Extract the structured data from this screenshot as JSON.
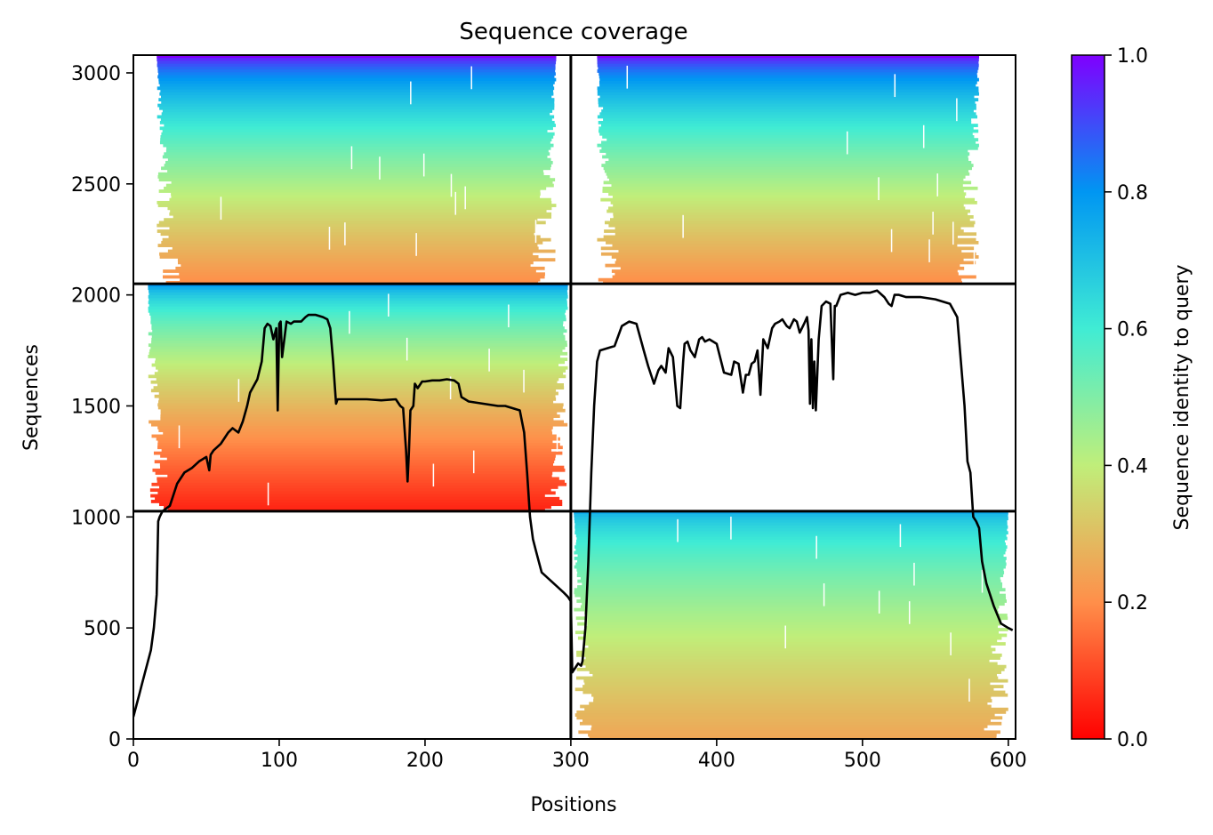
{
  "chart_data": {
    "type": "heatmap",
    "title": "Sequence coverage",
    "xlabel": "Positions",
    "ylabel": "Sequences",
    "xlim": [
      0,
      605
    ],
    "ylim": [
      0,
      3080
    ],
    "x_ticks": [
      0,
      100,
      200,
      300,
      400,
      500,
      600
    ],
    "y_ticks": [
      0,
      500,
      1000,
      1500,
      2000,
      2500,
      3000
    ],
    "colorbar": {
      "label": "Sequence identity to query",
      "range": [
        0,
        1
      ],
      "ticks": [
        "0.0",
        "0.2",
        "0.4",
        "0.6",
        "0.8",
        "1.0"
      ],
      "colormap": "rainbow_r",
      "stops": [
        "#ff0000",
        "#ff8f4a",
        "#c0ee7a",
        "#40ecd4",
        "#0096f2",
        "#7f00ff"
      ]
    },
    "chain_boundaries": {
      "x": [
        300
      ],
      "y": [
        1026,
        2050
      ]
    },
    "panels": [
      {
        "x": [
          0,
          300
        ],
        "y": [
          2050,
          3080
        ],
        "identity_top": 1.0,
        "identity_bottom": 0.2,
        "coverage_start": 16,
        "coverage_end": 290
      },
      {
        "x": [
          300,
          605
        ],
        "y": [
          2050,
          3080
        ],
        "identity_top": 1.0,
        "identity_bottom": 0.2,
        "coverage_start": 318,
        "coverage_end": 580
      },
      {
        "x": [
          0,
          300
        ],
        "y": [
          1026,
          2050
        ],
        "identity_top": 0.8,
        "identity_bottom": 0.05,
        "coverage_start": 10,
        "coverage_end": 298
      },
      {
        "x": [
          300,
          605
        ],
        "y": [
          1026,
          2050
        ],
        "identity_top": null,
        "identity_bottom": null,
        "coverage_start": null,
        "coverage_end": null
      },
      {
        "x": [
          0,
          300
        ],
        "y": [
          0,
          1026
        ],
        "identity_top": null,
        "identity_bottom": null,
        "coverage_start": null,
        "coverage_end": null
      },
      {
        "x": [
          300,
          605
        ],
        "y": [
          0,
          1026
        ],
        "identity_top": 0.75,
        "identity_bottom": 0.25,
        "coverage_start": 302,
        "coverage_end": 600
      }
    ],
    "coverage_line": {
      "name": "coverage",
      "x": [
        0,
        2,
        4,
        6,
        8,
        10,
        12,
        14,
        16,
        17,
        18,
        20,
        25,
        30,
        35,
        40,
        45,
        50,
        52,
        53,
        55,
        60,
        62,
        65,
        68,
        70,
        72,
        75,
        78,
        80,
        85,
        88,
        90,
        92,
        94,
        96,
        98,
        99,
        100,
        101,
        102,
        105,
        108,
        110,
        115,
        118,
        120,
        125,
        130,
        133,
        135,
        137,
        138,
        139,
        140,
        150,
        160,
        170,
        180,
        183,
        185,
        187,
        188,
        189,
        190,
        192,
        193,
        195,
        198,
        200,
        205,
        210,
        215,
        220,
        223,
        225,
        230,
        240,
        250,
        255,
        260,
        265,
        268,
        270,
        272,
        274,
        276,
        278,
        280,
        285,
        290,
        295,
        298,
        300,
        301,
        303,
        305,
        307,
        308,
        310,
        312,
        314,
        316,
        318,
        320,
        325,
        330,
        335,
        340,
        345,
        350,
        353,
        355,
        357,
        360,
        362,
        365,
        367,
        370,
        373,
        375,
        377,
        378,
        380,
        382,
        385,
        388,
        390,
        392,
        395,
        400,
        405,
        410,
        412,
        415,
        418,
        420,
        422,
        424,
        426,
        428,
        430,
        432,
        435,
        438,
        440,
        443,
        445,
        448,
        450,
        453,
        455,
        457,
        460,
        462,
        463,
        464,
        465,
        466,
        467,
        468,
        470,
        472,
        475,
        478,
        480,
        481,
        482,
        485,
        490,
        495,
        500,
        505,
        510,
        515,
        518,
        520,
        522,
        525,
        530,
        540,
        550,
        560,
        565,
        570,
        572,
        574,
        576,
        578,
        580,
        582,
        585,
        590,
        595,
        600,
        603,
        605
      ],
      "y": [
        100,
        150,
        200,
        250,
        300,
        350,
        400,
        500,
        650,
        980,
        1000,
        1026,
        1050,
        1150,
        1200,
        1220,
        1250,
        1270,
        1210,
        1280,
        1300,
        1330,
        1350,
        1380,
        1400,
        1390,
        1380,
        1430,
        1500,
        1560,
        1620,
        1700,
        1850,
        1870,
        1860,
        1800,
        1850,
        1480,
        1870,
        1880,
        1720,
        1880,
        1870,
        1880,
        1880,
        1900,
        1910,
        1910,
        1900,
        1890,
        1850,
        1700,
        1600,
        1510,
        1530,
        1530,
        1530,
        1525,
        1530,
        1500,
        1490,
        1300,
        1160,
        1300,
        1480,
        1500,
        1600,
        1580,
        1610,
        1610,
        1615,
        1615,
        1620,
        1615,
        1600,
        1540,
        1520,
        1510,
        1500,
        1500,
        1490,
        1480,
        1380,
        1200,
        1000,
        900,
        850,
        800,
        750,
        720,
        690,
        660,
        640,
        620,
        300,
        320,
        340,
        330,
        350,
        500,
        800,
        1200,
        1500,
        1700,
        1750,
        1760,
        1770,
        1860,
        1880,
        1870,
        1750,
        1680,
        1640,
        1600,
        1660,
        1680,
        1650,
        1760,
        1720,
        1500,
        1490,
        1700,
        1780,
        1790,
        1750,
        1720,
        1800,
        1810,
        1790,
        1800,
        1780,
        1650,
        1640,
        1700,
        1690,
        1560,
        1640,
        1640,
        1690,
        1700,
        1750,
        1550,
        1800,
        1760,
        1850,
        1870,
        1880,
        1890,
        1860,
        1850,
        1890,
        1880,
        1830,
        1870,
        1900,
        1840,
        1510,
        1800,
        1490,
        1700,
        1480,
        1800,
        1950,
        1970,
        1960,
        1620,
        1950,
        1950,
        2000,
        2010,
        2000,
        2010,
        2010,
        2020,
        1990,
        1960,
        1950,
        2000,
        2000,
        1990,
        1990,
        1980,
        1960,
        1900,
        1500,
        1250,
        1200,
        1000,
        980,
        950,
        800,
        700,
        600,
        520,
        500,
        490
      ]
    }
  }
}
